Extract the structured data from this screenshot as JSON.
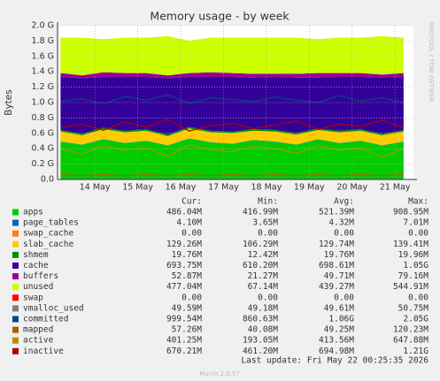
{
  "chart_data": {
    "type": "area",
    "title": "Memory usage - by week",
    "y_label": "Bytes",
    "side_text": "RRDTOOL / TOBI OETIKER",
    "x": [
      13.2,
      13.7,
      14.2,
      14.7,
      15.2,
      15.7,
      16.2,
      16.7,
      17.2,
      17.7,
      18.2,
      18.7,
      19.2,
      19.7,
      20.2,
      20.7,
      21.2
    ],
    "xlim": [
      13.13,
      21.43
    ],
    "xticks": [
      {
        "value": 14,
        "label": "14 May"
      },
      {
        "value": 15,
        "label": "15 May"
      },
      {
        "value": 16,
        "label": "16 May"
      },
      {
        "value": 17,
        "label": "17 May"
      },
      {
        "value": 18,
        "label": "18 May"
      },
      {
        "value": 19,
        "label": "19 May"
      },
      {
        "value": 20,
        "label": "20 May"
      },
      {
        "value": 21,
        "label": "21 May"
      }
    ],
    "ylim": [
      0,
      2.0
    ],
    "yticks": [
      {
        "value": 0,
        "label": "0.0"
      },
      {
        "value": 0.2,
        "label": "0.2 G"
      },
      {
        "value": 0.4,
        "label": "0.4 G"
      },
      {
        "value": 0.6,
        "label": "0.6 G"
      },
      {
        "value": 0.8,
        "label": "0.8 G"
      },
      {
        "value": 1.0,
        "label": "1.0 G"
      },
      {
        "value": 1.2,
        "label": "1.2 G"
      },
      {
        "value": 1.4,
        "label": "1.4 G"
      },
      {
        "value": 1.6,
        "label": "1.6 G"
      },
      {
        "value": 1.8,
        "label": "1.8 G"
      },
      {
        "value": 2.0,
        "label": "2.0 G"
      }
    ],
    "grid": true,
    "legend_headers": [
      "Cur:",
      "Min:",
      "Avg:",
      "Max:"
    ],
    "series": [
      {
        "name": "apps",
        "color": "#00cc00",
        "stack": true,
        "values": [
          0.49,
          0.45,
          0.52,
          0.47,
          0.5,
          0.44,
          0.53,
          0.48,
          0.46,
          0.51,
          0.49,
          0.45,
          0.52,
          0.47,
          0.5,
          0.44,
          0.49
        ],
        "legend_values": [
          "486.04M",
          "416.99M",
          "521.39M",
          "908.95M"
        ]
      },
      {
        "name": "page_tables",
        "color": "#0066b3",
        "stack": true,
        "values": [
          0.004,
          0.004,
          0.004,
          0.004,
          0.004,
          0.004,
          0.004,
          0.004,
          0.004,
          0.004,
          0.004,
          0.004,
          0.004,
          0.004,
          0.004,
          0.004,
          0.004
        ],
        "legend_values": [
          "4.10M",
          "3.65M",
          "4.32M",
          "7.01M"
        ]
      },
      {
        "name": "swap_cache",
        "color": "#ff8000",
        "stack": true,
        "values": [
          0,
          0,
          0,
          0,
          0,
          0,
          0,
          0,
          0,
          0,
          0,
          0,
          0,
          0,
          0,
          0,
          0
        ],
        "legend_values": [
          "0.00",
          "0.00",
          "0.00",
          "0.00"
        ]
      },
      {
        "name": "slab_cache",
        "color": "#ffcc00",
        "stack": true,
        "values": [
          0.13,
          0.12,
          0.13,
          0.14,
          0.13,
          0.12,
          0.13,
          0.13,
          0.14,
          0.12,
          0.13,
          0.13,
          0.12,
          0.14,
          0.13,
          0.13,
          0.13
        ],
        "legend_values": [
          "129.26M",
          "106.29M",
          "129.74M",
          "139.41M"
        ]
      },
      {
        "name": "shmem",
        "color": "#008f00",
        "stack": true,
        "values": [
          0.02,
          0.02,
          0.02,
          0.02,
          0.02,
          0.02,
          0.02,
          0.02,
          0.02,
          0.02,
          0.02,
          0.02,
          0.02,
          0.02,
          0.02,
          0.02,
          0.02
        ],
        "legend_values": [
          "19.76M",
          "12.42M",
          "19.76M",
          "19.96M"
        ]
      },
      {
        "name": "cache",
        "color": "#330099",
        "stack": true,
        "values": [
          0.69,
          0.72,
          0.66,
          0.7,
          0.68,
          0.73,
          0.65,
          0.7,
          0.71,
          0.67,
          0.69,
          0.72,
          0.66,
          0.7,
          0.68,
          0.73,
          0.69
        ],
        "legend_values": [
          "693.75M",
          "610.20M",
          "698.61M",
          "1.05G"
        ]
      },
      {
        "name": "buffers",
        "color": "#990099",
        "stack": true,
        "values": [
          0.05,
          0.04,
          0.06,
          0.05,
          0.05,
          0.04,
          0.05,
          0.06,
          0.05,
          0.05,
          0.04,
          0.05,
          0.06,
          0.05,
          0.05,
          0.04,
          0.05
        ],
        "legend_values": [
          "52.87M",
          "21.27M",
          "49.71M",
          "79.16M"
        ]
      },
      {
        "name": "unused",
        "color": "#ccff00",
        "stack": true,
        "values": [
          0.46,
          0.49,
          0.43,
          0.46,
          0.46,
          0.51,
          0.42,
          0.45,
          0.46,
          0.47,
          0.47,
          0.47,
          0.44,
          0.46,
          0.46,
          0.5,
          0.46
        ],
        "legend_values": [
          "477.04M",
          "67.14M",
          "439.27M",
          "544.91M"
        ]
      },
      {
        "name": "swap",
        "color": "#ff0000",
        "stack": true,
        "values": [
          0,
          0,
          0,
          0,
          0,
          0,
          0,
          0,
          0,
          0,
          0,
          0,
          0,
          0,
          0,
          0,
          0
        ],
        "legend_values": [
          "0.00",
          "0.00",
          "0.00",
          "0.00"
        ]
      },
      {
        "name": "vmalloc_used",
        "color": "#808080",
        "stack": false,
        "values": [
          0.05,
          0.05,
          0.05,
          0.05,
          0.05,
          0.05,
          0.05,
          0.05,
          0.05,
          0.05,
          0.05,
          0.05,
          0.05,
          0.05,
          0.05,
          0.05,
          0.05
        ],
        "legend_values": [
          "49.59M",
          "49.18M",
          "49.61M",
          "50.75M"
        ]
      },
      {
        "name": "committed",
        "color": "#00487d",
        "stack": false,
        "values": [
          1.02,
          1.05,
          0.98,
          1.08,
          1.03,
          1.1,
          0.99,
          1.06,
          1.04,
          1.01,
          1.07,
          1.03,
          1.0,
          1.09,
          1.02,
          1.06,
          1.0
        ],
        "legend_values": [
          "999.54M",
          "860.63M",
          "1.06G",
          "2.05G"
        ]
      },
      {
        "name": "mapped",
        "color": "#b35a00",
        "stack": false,
        "values": [
          0.06,
          0.05,
          0.06,
          0.05,
          0.06,
          0.05,
          0.06,
          0.05,
          0.06,
          0.05,
          0.06,
          0.05,
          0.06,
          0.05,
          0.06,
          0.05,
          0.06
        ],
        "legend_values": [
          "57.26M",
          "40.08M",
          "49.25M",
          "120.23M"
        ]
      },
      {
        "name": "active",
        "color": "#b38f00",
        "stack": false,
        "values": [
          0.4,
          0.33,
          0.44,
          0.38,
          0.41,
          0.3,
          0.45,
          0.39,
          0.36,
          0.43,
          0.4,
          0.34,
          0.44,
          0.38,
          0.41,
          0.29,
          0.4
        ],
        "legend_values": [
          "401.25M",
          "193.05M",
          "413.56M",
          "647.88M"
        ]
      },
      {
        "name": "inactive",
        "color": "#b30000",
        "stack": false,
        "values": [
          0.67,
          0.72,
          0.64,
          0.75,
          0.68,
          0.78,
          0.63,
          0.7,
          0.73,
          0.66,
          0.71,
          0.76,
          0.65,
          0.72,
          0.69,
          0.77,
          0.67
        ],
        "legend_values": [
          "670.21M",
          "461.20M",
          "694.98M",
          "1.21G"
        ]
      }
    ],
    "last_update": "Last update: Fri May 22 00:25:35 2026",
    "version": "Munin 2.0.57"
  }
}
